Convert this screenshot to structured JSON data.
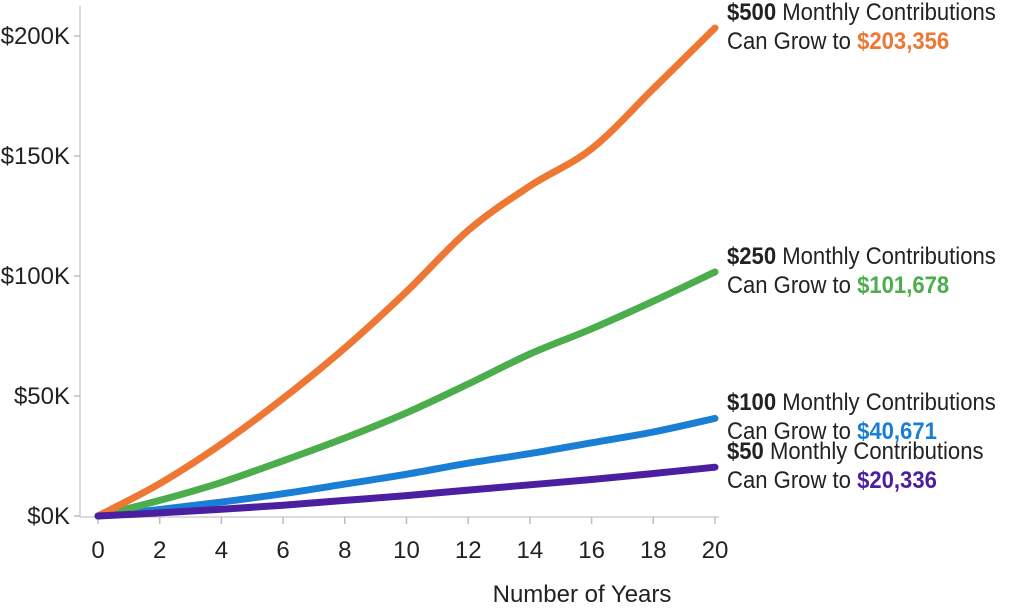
{
  "chart_data": {
    "type": "line",
    "xlabel": "Number of Years",
    "ylabel": "",
    "xlim": [
      0,
      20
    ],
    "ylim": [
      0,
      210000
    ],
    "x_ticks": [
      "0",
      "2",
      "4",
      "6",
      "8",
      "10",
      "12",
      "14",
      "16",
      "18",
      "20"
    ],
    "y_ticks": [
      "$0K",
      "$50K",
      "$100K",
      "$150K",
      "$200K"
    ],
    "y_tick_values": [
      0,
      50000,
      100000,
      150000,
      200000
    ],
    "grid": false,
    "x": [
      0,
      2,
      4,
      6,
      8,
      10,
      12,
      14,
      16,
      18,
      20
    ],
    "series": [
      {
        "color": "#ee7733",
        "values": [
          0,
          13500,
          30000,
          49000,
          70000,
          93500,
          119000,
          137500,
          153000,
          178000,
          203356
        ],
        "annotation": {
          "amount": "$500",
          "text1": " Monthly Contributions",
          "text2": "Can Grow to ",
          "value": "$203,356"
        }
      },
      {
        "color": "#4cad4c",
        "values": [
          0,
          6500,
          14000,
          23000,
          32500,
          43000,
          55000,
          67500,
          78000,
          89500,
          101678
        ],
        "annotation": {
          "amount": "$250",
          "text1": " Monthly Contributions",
          "text2": "Can Grow to ",
          "value": "$101,678"
        }
      },
      {
        "color": "#1a7fd4",
        "values": [
          0,
          2700,
          5800,
          9300,
          13300,
          17400,
          22000,
          26000,
          30500,
          35000,
          40671
        ],
        "annotation": {
          "amount": "$100",
          "text1": " Monthly Contributions",
          "text2": "Can Grow to ",
          "value": "$40,671"
        }
      },
      {
        "color": "#4b1fa0",
        "values": [
          0,
          1300,
          2800,
          4500,
          6500,
          8500,
          10800,
          13000,
          15200,
          17700,
          20336
        ],
        "annotation": {
          "amount": "$50",
          "text1": " Monthly Contributions",
          "text2": "Can Grow to ",
          "value": "$20,336"
        }
      }
    ]
  }
}
